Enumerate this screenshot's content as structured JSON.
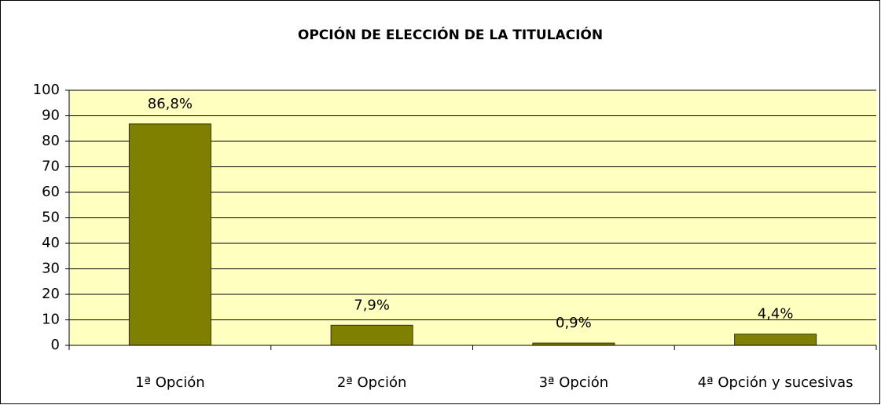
{
  "chart_data": {
    "type": "bar",
    "title": "OPCIÓN DE ELECCIÓN DE LA TITULACIÓN",
    "categories": [
      "1ª Opción",
      "2ª Opción",
      "3ª Opción",
      "4ª Opción y sucesivas"
    ],
    "values": [
      86.8,
      7.9,
      0.9,
      4.4
    ],
    "value_labels": [
      "86,8%",
      "7,9%",
      "0,9%",
      "4,4%"
    ],
    "color": "#808000",
    "ylim": [
      0,
      100
    ],
    "yticks": [
      0,
      10,
      20,
      30,
      40,
      50,
      60,
      70,
      80,
      90,
      100
    ],
    "grid": true
  }
}
